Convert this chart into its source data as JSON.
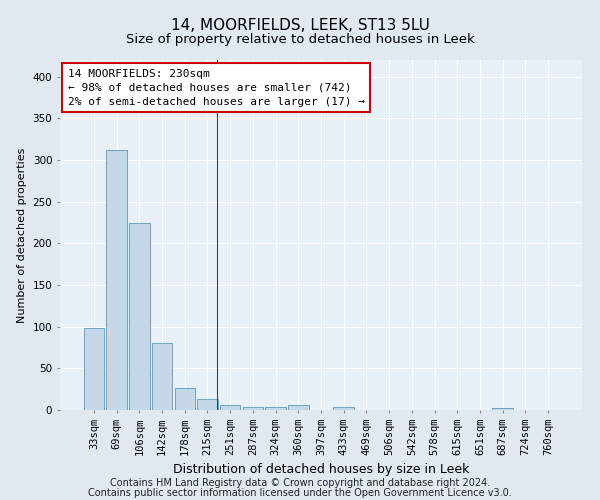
{
  "title": "14, MOORFIELDS, LEEK, ST13 5LU",
  "subtitle": "Size of property relative to detached houses in Leek",
  "xlabel": "Distribution of detached houses by size in Leek",
  "ylabel": "Number of detached properties",
  "footer_line1": "Contains HM Land Registry data © Crown copyright and database right 2024.",
  "footer_line2": "Contains public sector information licensed under the Open Government Licence v3.0.",
  "annotation_line1": "14 MOORFIELDS: 230sqm",
  "annotation_line2": "← 98% of detached houses are smaller (742)",
  "annotation_line3": "2% of semi-detached houses are larger (17) →",
  "bar_labels": [
    "33sqm",
    "69sqm",
    "106sqm",
    "142sqm",
    "178sqm",
    "215sqm",
    "251sqm",
    "287sqm",
    "324sqm",
    "360sqm",
    "397sqm",
    "433sqm",
    "469sqm",
    "506sqm",
    "542sqm",
    "578sqm",
    "615sqm",
    "651sqm",
    "687sqm",
    "724sqm",
    "760sqm"
  ],
  "bar_values": [
    98,
    312,
    224,
    80,
    26,
    13,
    6,
    4,
    4,
    6,
    0,
    4,
    0,
    0,
    0,
    0,
    0,
    0,
    3,
    0,
    0
  ],
  "bar_color": "#c5d8e8",
  "bar_edge_color": "#5a9abf",
  "ylim": [
    0,
    420
  ],
  "yticks": [
    0,
    50,
    100,
    150,
    200,
    250,
    300,
    350,
    400
  ],
  "background_color": "#e0e8f0",
  "plot_background_color": "#e8f0f8",
  "grid_color": "#ffffff",
  "annotation_box_facecolor": "#ffffff",
  "annotation_border_color": "#cc0000",
  "title_fontsize": 11,
  "subtitle_fontsize": 9.5,
  "xlabel_fontsize": 9,
  "ylabel_fontsize": 8,
  "tick_fontsize": 7.5,
  "annotation_fontsize": 8,
  "footer_fontsize": 7
}
